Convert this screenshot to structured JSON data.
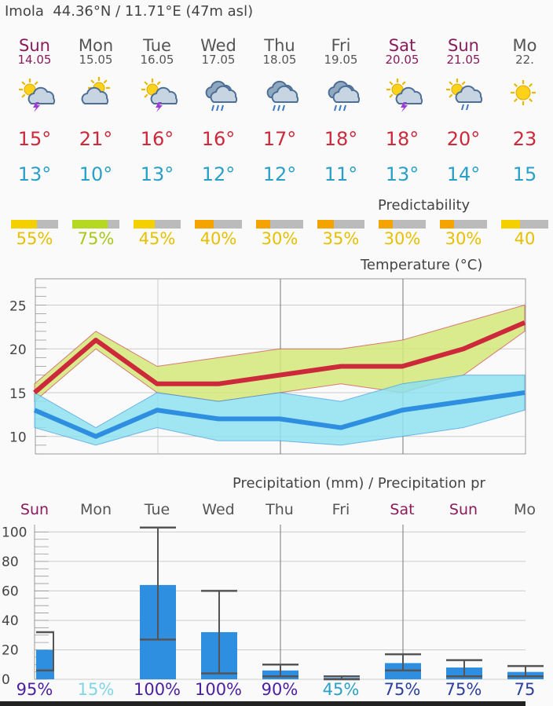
{
  "header": {
    "location": "Imola",
    "coords": "44.36°N / 11.71°E (47m asl)"
  },
  "days": [
    {
      "name": "Sun",
      "date": "14.05",
      "weekend": true,
      "icon": "thunderstorm-sun-icon",
      "max": "15°",
      "min": "13°",
      "pred": "55%",
      "pred_value": 0.55,
      "pred_color": "#f5d000"
    },
    {
      "name": "Mon",
      "date": "15.05",
      "weekend": false,
      "icon": "partly-cloudy-icon",
      "max": "21°",
      "min": "10°",
      "pred": "75%",
      "pred_value": 0.75,
      "pred_color": "#b5d820"
    },
    {
      "name": "Tue",
      "date": "16.05",
      "weekend": false,
      "icon": "thunderstorm-sun-icon",
      "max": "16°",
      "min": "13°",
      "pred": "45%",
      "pred_value": 0.45,
      "pred_color": "#f5d000"
    },
    {
      "name": "Wed",
      "date": "17.05",
      "weekend": false,
      "icon": "rain-cloud-icon",
      "max": "16°",
      "min": "12°",
      "pred": "40%",
      "pred_value": 0.4,
      "pred_color": "#f5a300"
    },
    {
      "name": "Thu",
      "date": "18.05",
      "weekend": false,
      "icon": "rain-cloud-icon",
      "max": "17°",
      "min": "12°",
      "pred": "30%",
      "pred_value": 0.3,
      "pred_color": "#f5a300"
    },
    {
      "name": "Fri",
      "date": "19.05",
      "weekend": false,
      "icon": "rain-cloud-icon",
      "max": "18°",
      "min": "11°",
      "pred": "35%",
      "pred_value": 0.35,
      "pred_color": "#f5a300"
    },
    {
      "name": "Sat",
      "date": "20.05",
      "weekend": true,
      "icon": "thunderstorm-sun-icon",
      "max": "18°",
      "min": "13°",
      "pred": "30%",
      "pred_value": 0.3,
      "pred_color": "#f5a300"
    },
    {
      "name": "Sun",
      "date": "21.05",
      "weekend": true,
      "icon": "shower-sun-icon",
      "max": "20°",
      "min": "14°",
      "pred": "30%",
      "pred_value": 0.3,
      "pred_color": "#f5a300"
    },
    {
      "name": "Mo",
      "date": "22.",
      "weekend": false,
      "icon": "sun-icon",
      "max": "23",
      "min": "15",
      "pred": "40",
      "pred_value": 0.4,
      "pred_color": "#f5d000"
    }
  ],
  "predictability_label": "Predictability",
  "temperature_title": "Temperature (°C)",
  "precip_title": "Precipitation (mm) / Precipitation pr",
  "chart_data": [
    {
      "type": "line",
      "title": "Temperature (°C)",
      "yticks": [
        "25",
        "20",
        "15",
        "10"
      ],
      "ylim": [
        8,
        28
      ],
      "series": [
        {
          "name": "max",
          "values": [
            15,
            21,
            16,
            16,
            17,
            18,
            18,
            20,
            23
          ],
          "color": "#cc2a3a",
          "band_low": [
            14,
            20,
            15,
            14,
            15,
            16,
            15,
            17,
            22
          ],
          "band_high": [
            16,
            22,
            18,
            19,
            20,
            20,
            21,
            23,
            25
          ],
          "band_color": "#d4e87a"
        },
        {
          "name": "min",
          "values": [
            13,
            10,
            13,
            12,
            12,
            11,
            13,
            14,
            15
          ],
          "color": "#2e8fe0",
          "band_low": [
            11,
            9,
            11,
            9.5,
            9.5,
            9,
            10,
            11,
            13
          ],
          "band_high": [
            15,
            11,
            15,
            14,
            15,
            14,
            16,
            17,
            17
          ],
          "band_color": "#8ee0f0"
        }
      ],
      "grid": true
    },
    {
      "type": "bar",
      "title": "Precipitation (mm) / Precipitation pr",
      "categories": [
        "Sun",
        "Mon",
        "Tue",
        "Wed",
        "Thu",
        "Fri",
        "Sat",
        "Sun",
        "Mo"
      ],
      "category_weekend": [
        true,
        false,
        false,
        false,
        false,
        false,
        true,
        true,
        false
      ],
      "yticks": [
        "100",
        "80",
        "60",
        "40",
        "20",
        "0"
      ],
      "ylim": [
        0,
        105
      ],
      "values": [
        20,
        0,
        64,
        32,
        6,
        1,
        11,
        8,
        5
      ],
      "err_low": [
        6,
        0,
        27,
        4,
        2,
        0,
        6,
        2,
        2
      ],
      "err_high": [
        32,
        0,
        103,
        60,
        10,
        2,
        17,
        13,
        9
      ],
      "probabilities": [
        "95%",
        "15%",
        "100%",
        "100%",
        "90%",
        "45%",
        "75%",
        "75%",
        "75"
      ],
      "prob_colors": [
        "#4b1fa0",
        "#7fd6e8",
        "#4b1fa0",
        "#4b1fa0",
        "#4b1fa0",
        "#2aa0c8",
        "#2a3fa0",
        "#2a3fa0",
        "#2a3fa0"
      ],
      "bar_color": "#2e8fe0",
      "grid": true
    }
  ]
}
